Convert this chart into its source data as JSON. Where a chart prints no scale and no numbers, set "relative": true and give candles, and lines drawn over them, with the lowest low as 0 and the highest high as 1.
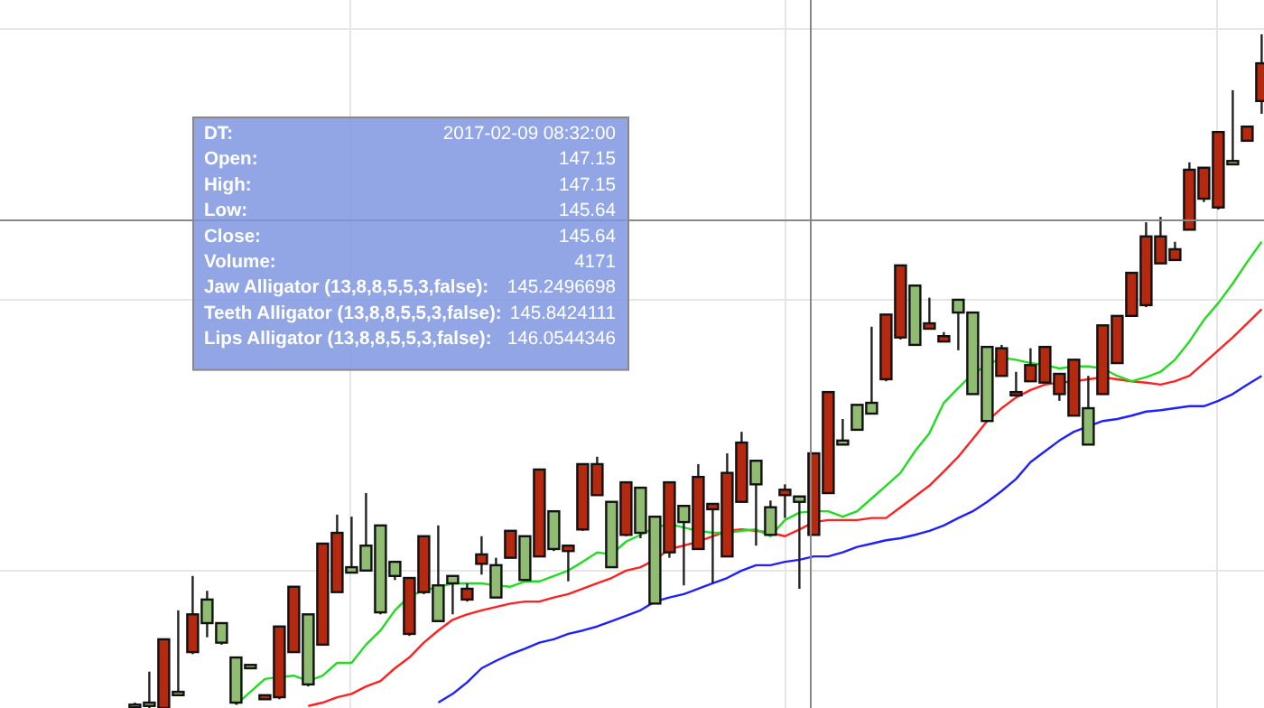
{
  "chart_data": {
    "type": "candlestick",
    "relative": true,
    "grid": true,
    "ref_lines": [
      {
        "axis": "y",
        "value": 0.724,
        "color": "#888888"
      }
    ],
    "categories": [
      null,
      null,
      null,
      null,
      null,
      null,
      null,
      null,
      null,
      null,
      null,
      null,
      null,
      null,
      null,
      null,
      null,
      null,
      null,
      null,
      null,
      null,
      null,
      null,
      null,
      null,
      null,
      null,
      null,
      null,
      null,
      null,
      null,
      null,
      null,
      null,
      null,
      null,
      null,
      null,
      null,
      null,
      null,
      null,
      null,
      null,
      null,
      null,
      null,
      null,
      null,
      null,
      null,
      null,
      null,
      null,
      null,
      null,
      null,
      null,
      null,
      null,
      null,
      null,
      null,
      null,
      null,
      null,
      null,
      null,
      null,
      null,
      null,
      null,
      null,
      null,
      null,
      null,
      null
    ],
    "ohlc": [
      [
        0.003,
        0.008,
        0,
        0.005
      ],
      [
        0.003,
        0.054,
        0,
        0.008
      ],
      [
        0.102,
        0.102,
        0,
        0
      ],
      [
        0.019,
        0.145,
        0.019,
        0.024
      ],
      [
        0.139,
        0.196,
        0.08,
        0.083
      ],
      [
        0.126,
        0.174,
        0.105,
        0.161
      ],
      [
        0.097,
        0.126,
        0.094,
        0.126
      ],
      [
        0.008,
        0.075,
        0.005,
        0.075
      ],
      [
        0.059,
        0.064,
        0.059,
        0.064
      ],
      [
        0.019,
        0.019,
        0.013,
        0.013
      ],
      [
        0.121,
        0.121,
        0.013,
        0.016
      ],
      [
        0.18,
        0.18,
        0.083,
        0.083
      ],
      [
        0.035,
        0.139,
        0.032,
        0.139
      ],
      [
        0.244,
        0.244,
        0.094,
        0.094
      ],
      [
        0.26,
        0.287,
        0.172,
        0.172
      ],
      [
        0.201,
        0.284,
        0.201,
        0.209
      ],
      [
        0.204,
        0.319,
        0.204,
        0.241
      ],
      [
        0.142,
        0.271,
        0.139,
        0.271
      ],
      [
        0.196,
        0.217,
        0.19,
        0.217
      ],
      [
        0.193,
        0.193,
        0.107,
        0.11
      ],
      [
        0.255,
        0.255,
        0.169,
        0.172
      ],
      [
        0.129,
        0.271,
        0.129,
        0.182
      ],
      [
        0.185,
        0.196,
        0.139,
        0.196
      ],
      [
        0.177,
        0.185,
        0.158,
        0.161
      ],
      [
        0.228,
        0.255,
        0.198,
        0.214
      ],
      [
        0.164,
        0.223,
        0.164,
        0.212
      ],
      [
        0.263,
        0.263,
        0.223,
        0.223
      ],
      [
        0.19,
        0.255,
        0.19,
        0.255
      ],
      [
        0.354,
        0.354,
        0.225,
        0.225
      ],
      [
        0.236,
        0.292,
        0.233,
        0.292
      ],
      [
        0.241,
        0.241,
        0.188,
        0.233
      ],
      [
        0.362,
        0.362,
        0.263,
        0.265
      ],
      [
        0.362,
        0.373,
        0.316,
        0.316
      ],
      [
        0.209,
        0.306,
        0.209,
        0.306
      ],
      [
        0.335,
        0.335,
        0.255,
        0.257
      ],
      [
        0.26,
        0.327,
        0.252,
        0.327
      ],
      [
        0.155,
        0.284,
        0.155,
        0.284
      ],
      [
        0.335,
        0.335,
        0.223,
        0.231
      ],
      [
        0.276,
        0.3,
        0.182,
        0.3
      ],
      [
        0.343,
        0.362,
        0.236,
        0.236
      ],
      [
        0.303,
        0.303,
        0.185,
        0.295
      ],
      [
        0.349,
        0.378,
        0.225,
        0.225
      ],
      [
        0.394,
        0.41,
        0.306,
        0.306
      ],
      [
        0.332,
        0.367,
        0.241,
        0.367
      ],
      [
        0.257,
        0.308,
        0.257,
        0.298
      ],
      [
        0.324,
        0.332,
        0.282,
        0.316
      ],
      [
        0.306,
        0.314,
        0.177,
        0.314
      ],
      [
        0.378,
        0.378,
        0.257,
        0.257
      ],
      [
        0.469,
        0.469,
        0.319,
        0.319
      ],
      [
        0.391,
        0.429,
        0.391,
        0.397
      ],
      [
        0.413,
        0.45,
        0.413,
        0.45
      ],
      [
        0.437,
        0.566,
        0.437,
        0.453
      ],
      [
        0.584,
        0.584,
        0.485,
        0.488
      ],
      [
        0.657,
        0.657,
        0.547,
        0.55
      ],
      [
        0.539,
        0.627,
        0.539,
        0.627
      ],
      [
        0.571,
        0.609,
        0.563,
        0.563
      ],
      [
        0.552,
        0.558,
        0.544,
        0.544
      ],
      [
        0.587,
        0.606,
        0.531,
        0.606
      ],
      [
        0.466,
        0.587,
        0.466,
        0.587
      ],
      [
        0.426,
        0.536,
        0.426,
        0.536
      ],
      [
        0.534,
        0.539,
        0.493,
        0.493
      ],
      [
        0.469,
        0.499,
        0.464,
        0.464
      ],
      [
        0.509,
        0.534,
        0.485,
        0.485
      ],
      [
        0.536,
        0.536,
        0.483,
        0.483
      ],
      [
        0.496,
        0.496,
        0.456,
        0.466
      ],
      [
        0.517,
        0.517,
        0.434,
        0.434
      ],
      [
        0.391,
        0.493,
        0.391,
        0.445
      ],
      [
        0.568,
        0.568,
        0.466,
        0.466
      ],
      [
        0.582,
        0.582,
        0.512,
        0.512
      ],
      [
        0.646,
        0.646,
        0.582,
        0.582
      ],
      [
        0.7,
        0.721,
        0.595,
        0.598
      ],
      [
        0.7,
        0.729,
        0.66,
        0.66
      ],
      [
        0.681,
        0.692,
        0.665,
        0.665
      ],
      [
        0.799,
        0.81,
        0.71,
        0.71
      ],
      [
        0.802,
        0.802,
        0.751,
        0.756
      ],
      [
        0.855,
        0.855,
        0.74,
        0.743
      ],
      [
        0.807,
        0.917,
        0.807,
        0.812
      ],
      [
        0.863,
        0.863,
        0.842,
        0.842
      ],
      [
        0.957,
        1,
        0.882,
        0.901
      ]
    ],
    "series": [
      {
        "type": "line",
        "color": "#2020ff",
        "values": [
          null,
          null,
          null,
          null,
          null,
          null,
          null,
          null,
          null,
          null,
          null,
          null,
          null,
          null,
          null,
          null,
          null,
          null,
          null,
          null,
          null,
          0.008,
          0.021,
          0.038,
          0.059,
          0.07,
          0.08,
          0.088,
          0.097,
          0.102,
          0.11,
          0.115,
          0.121,
          0.129,
          0.137,
          0.145,
          0.158,
          0.164,
          0.169,
          0.177,
          0.185,
          0.193,
          0.204,
          0.212,
          0.212,
          0.217,
          0.22,
          0.225,
          0.225,
          0.231,
          0.239,
          0.244,
          0.249,
          0.252,
          0.257,
          0.263,
          0.271,
          0.282,
          0.292,
          0.306,
          0.322,
          0.34,
          0.365,
          0.381,
          0.397,
          0.41,
          0.418,
          0.426,
          0.429,
          0.434,
          0.44,
          0.442,
          0.445,
          0.448,
          0.448,
          0.456,
          0.466,
          0.48,
          0.493
        ]
      },
      {
        "type": "line",
        "color": "#ff2020",
        "values": [
          null,
          null,
          null,
          null,
          null,
          null,
          null,
          null,
          null,
          null,
          null,
          null,
          0.003,
          0.008,
          0.016,
          0.021,
          0.032,
          0.04,
          0.059,
          0.075,
          0.097,
          0.115,
          0.131,
          0.139,
          0.145,
          0.15,
          0.155,
          0.158,
          0.158,
          0.164,
          0.169,
          0.177,
          0.185,
          0.193,
          0.204,
          0.209,
          0.22,
          0.236,
          0.241,
          0.247,
          0.255,
          0.263,
          0.265,
          0.263,
          0.26,
          0.255,
          0.265,
          0.276,
          0.279,
          0.279,
          0.279,
          0.282,
          0.282,
          0.298,
          0.314,
          0.33,
          0.351,
          0.373,
          0.399,
          0.426,
          0.445,
          0.461,
          0.472,
          0.48,
          0.483,
          0.485,
          0.488,
          0.491,
          0.488,
          0.485,
          0.483,
          0.48,
          0.485,
          0.493,
          0.512,
          0.531,
          0.55,
          0.571,
          0.592
        ]
      },
      {
        "type": "line",
        "color": "#20dd20",
        "values": [
          null,
          null,
          null,
          null,
          null,
          null,
          null,
          0.005,
          0.024,
          0.043,
          0.046,
          0.048,
          0.04,
          0.048,
          0.067,
          0.067,
          0.094,
          0.115,
          0.145,
          0.166,
          0.174,
          0.18,
          0.185,
          0.185,
          0.185,
          0.182,
          0.18,
          0.188,
          0.188,
          0.196,
          0.204,
          0.217,
          0.231,
          0.228,
          0.247,
          0.257,
          0.268,
          0.273,
          0.268,
          0.263,
          0.26,
          0.26,
          0.263,
          0.265,
          0.255,
          0.279,
          0.29,
          0.292,
          0.292,
          0.284,
          0.292,
          0.311,
          0.33,
          0.349,
          0.381,
          0.408,
          0.453,
          0.475,
          0.496,
          0.509,
          0.52,
          0.517,
          0.512,
          0.509,
          0.504,
          0.507,
          0.507,
          0.504,
          0.493,
          0.485,
          0.491,
          0.499,
          0.517,
          0.544,
          0.576,
          0.601,
          0.63,
          0.662,
          0.692
        ]
      }
    ],
    "annotations": [
      "DT:",
      "2017-02-09 08:32:00",
      "Open:",
      "147.15",
      "High:",
      "147.15",
      "Low:",
      "145.64",
      "Close:",
      "145.64",
      "Volume:",
      "4171",
      "Jaw Alligator (13,8,8,5,5,3,false):",
      "145.2496698",
      "Teeth Alligator (13,8,8,5,5,3,false):",
      "145.8424111",
      "Lips Alligator (13,8,8,5,5,3,false):",
      "146.0544346"
    ]
  }
}
